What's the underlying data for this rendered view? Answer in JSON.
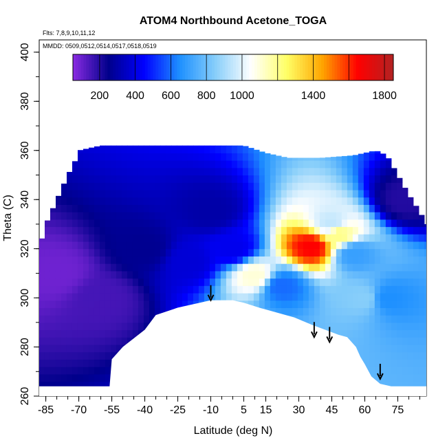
{
  "chart_data": {
    "type": "heatmap",
    "title": "ATOM4 Northbound Acetone_TOGA",
    "annotations": [
      "Flts: 7,8,9,10,11,12",
      "MMDD: 0509,0512,0514,0517,0518,0519"
    ],
    "xlabel": "Latitude (deg N)",
    "ylabel": "Theta (C)",
    "xlim": [
      -88,
      88
    ],
    "ylim": [
      260,
      405
    ],
    "x_ticks": [
      -85,
      -70,
      -55,
      -40,
      -25,
      -10,
      5,
      15,
      30,
      45,
      60,
      75
    ],
    "y_ticks": [
      260,
      280,
      300,
      320,
      340,
      360,
      380,
      400
    ],
    "colorbar": {
      "range": [
        50,
        1850
      ],
      "ticks": [
        200,
        400,
        600,
        800,
        1000,
        1400,
        1800
      ],
      "colors": [
        "#8a2be2",
        "#00008b",
        "#0000ff",
        "#1e90ff",
        "#87cefa",
        "#ffffff",
        "#ffff66",
        "#ffa500",
        "#ff0000",
        "#b22222"
      ]
    },
    "terrain_outline": [
      [
        -56,
        264
      ],
      [
        -55,
        275
      ],
      [
        -50,
        280
      ],
      [
        -40,
        287
      ],
      [
        -35,
        293
      ],
      [
        -25,
        296
      ],
      [
        -15,
        298
      ],
      [
        -10,
        299
      ],
      [
        -5,
        299
      ],
      [
        0,
        299
      ],
      [
        5,
        298
      ],
      [
        12,
        296
      ],
      [
        20,
        294
      ],
      [
        28,
        292
      ],
      [
        36,
        289
      ],
      [
        42,
        287
      ],
      [
        48,
        285
      ],
      [
        52,
        284
      ],
      [
        56,
        280
      ],
      [
        58,
        276
      ],
      [
        60,
        273
      ],
      [
        63,
        268
      ],
      [
        67,
        265
      ],
      [
        72,
        264
      ]
    ],
    "upper_outline": [
      [
        -88,
        320
      ],
      [
        -85,
        330
      ],
      [
        -80,
        340
      ],
      [
        -75,
        350
      ],
      [
        -72,
        355
      ],
      [
        -70,
        360
      ],
      [
        -60,
        362
      ],
      [
        -40,
        362
      ],
      [
        -20,
        362
      ],
      [
        0,
        362
      ],
      [
        5,
        362
      ],
      [
        15,
        359
      ],
      [
        25,
        357
      ],
      [
        40,
        357
      ],
      [
        55,
        358
      ],
      [
        65,
        360
      ],
      [
        70,
        358
      ],
      [
        75,
        350
      ],
      [
        80,
        342
      ],
      [
        85,
        335
      ],
      [
        88,
        330
      ]
    ],
    "concentration_field": [
      {
        "lat": -80,
        "theta": 310,
        "value": 90
      },
      {
        "lat": -60,
        "theta": 300,
        "value": 150
      },
      {
        "lat": -40,
        "theta": 320,
        "value": 260
      },
      {
        "lat": -20,
        "theta": 315,
        "value": 380
      },
      {
        "lat": -10,
        "theta": 335,
        "value": 300
      },
      {
        "lat": 0,
        "theta": 320,
        "value": 420
      },
      {
        "lat": 10,
        "theta": 309,
        "value": 1100
      },
      {
        "lat": 22,
        "theta": 305,
        "value": 600
      },
      {
        "lat": 36,
        "theta": 321,
        "value": 1650
      },
      {
        "lat": 45,
        "theta": 330,
        "value": 950
      },
      {
        "lat": 48,
        "theta": 326,
        "value": 1200
      },
      {
        "lat": 55,
        "theta": 318,
        "value": 700
      },
      {
        "lat": 60,
        "theta": 300,
        "value": 850
      },
      {
        "lat": 70,
        "theta": 300,
        "value": 650
      },
      {
        "lat": 78,
        "theta": 340,
        "value": 200
      }
    ],
    "flight_markers": [
      {
        "lat": -10,
        "theta": 299
      },
      {
        "lat": 37,
        "theta": 284
      },
      {
        "lat": 44,
        "theta": 282
      },
      {
        "lat": 67,
        "theta": 267
      }
    ]
  }
}
